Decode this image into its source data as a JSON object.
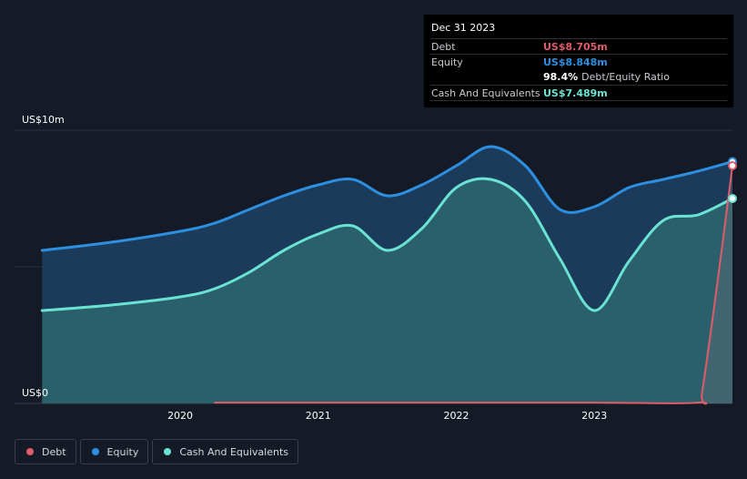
{
  "tooltip": {
    "date": "Dec 31 2023",
    "debt_label": "Debt",
    "debt_value": "US$8.705m",
    "equity_label": "Equity",
    "equity_value": "US$8.848m",
    "ratio_pct": "98.4%",
    "ratio_label": "Debt/Equity Ratio",
    "cash_label": "Cash And Equivalents",
    "cash_value": "US$7.489m"
  },
  "legend": {
    "debt": "Debt",
    "equity": "Equity",
    "cash": "Cash And Equivalents"
  },
  "colors": {
    "debt": "#e05c69",
    "equity": "#2d8fe0",
    "cash": "#6ae3d2",
    "background": "#151b26"
  },
  "chart_data": {
    "type": "area",
    "title": "",
    "xlabel": "",
    "ylabel": "",
    "ylim": [
      0,
      10
    ],
    "y_unit": "US$m",
    "y_tick_labels": [
      {
        "value": 10,
        "label": "US$10m"
      },
      {
        "value": 0,
        "label": "US$0"
      }
    ],
    "x_tick_labels": [
      {
        "value": 2020.0,
        "label": "2020"
      },
      {
        "value": 2021.0,
        "label": "2021"
      },
      {
        "value": 2022.0,
        "label": "2022"
      },
      {
        "value": 2023.0,
        "label": "2023"
      }
    ],
    "xlim": [
      2018.8,
      2024.0
    ],
    "series": [
      {
        "key": "equity",
        "name": "Equity",
        "x": [
          2019.0,
          2019.5,
          2020.0,
          2020.25,
          2020.5,
          2020.75,
          2021.0,
          2021.25,
          2021.5,
          2021.75,
          2022.0,
          2022.25,
          2022.5,
          2022.75,
          2023.0,
          2023.25,
          2023.5,
          2023.75,
          2024.0
        ],
        "y": [
          5.6,
          5.9,
          6.3,
          6.6,
          7.1,
          7.6,
          8.0,
          8.2,
          7.6,
          8.0,
          8.7,
          9.4,
          8.7,
          7.1,
          7.2,
          7.9,
          8.2,
          8.5,
          8.85
        ]
      },
      {
        "key": "cash",
        "name": "Cash And Equivalents",
        "x": [
          2019.0,
          2019.5,
          2020.0,
          2020.25,
          2020.5,
          2020.75,
          2021.0,
          2021.25,
          2021.5,
          2021.75,
          2022.0,
          2022.25,
          2022.5,
          2022.75,
          2023.0,
          2023.25,
          2023.5,
          2023.75,
          2024.0
        ],
        "y": [
          3.4,
          3.6,
          3.9,
          4.2,
          4.8,
          5.6,
          6.2,
          6.5,
          5.6,
          6.4,
          7.9,
          8.2,
          7.4,
          5.3,
          3.4,
          5.2,
          6.7,
          6.9,
          7.5
        ]
      },
      {
        "key": "debt",
        "name": "Debt",
        "x": [
          2020.25,
          2021.0,
          2022.0,
          2023.0,
          2023.75,
          2023.78,
          2023.88,
          2024.0
        ],
        "y": [
          0.03,
          0.03,
          0.03,
          0.03,
          0.03,
          0.4,
          4.0,
          8.7
        ]
      }
    ],
    "grid": true,
    "legend_position": "bottom-left"
  }
}
